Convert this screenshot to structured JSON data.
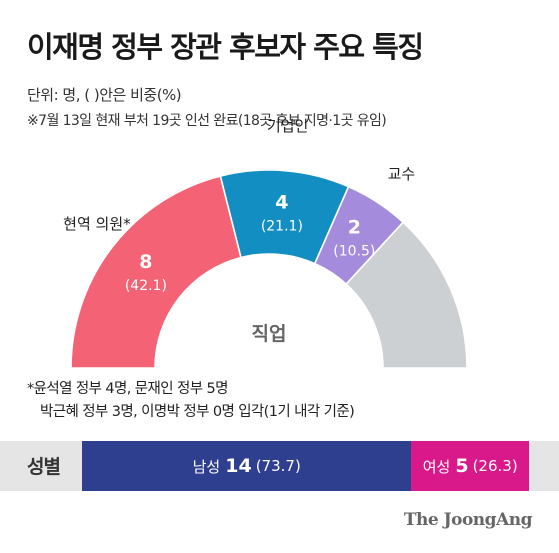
{
  "title": "이재명 정부 장관 후보자 주요 특징",
  "unit": "단위: 명, ( )안은 비중(%)",
  "note": "※7월 13일 현재 부처 19곳 인선 완료(18곳 후보 지명·1곳 유임)",
  "footnote_line1": "*윤석열 정부 4명, 문재인 정부 5명",
  "footnote_line2": "박근혜 정부 3명, 이명박 정부 0명 입각(1기 내각 기준)",
  "logo": "The JoongAng",
  "chart_data": [
    {
      "type": "pie",
      "subtype": "half-donut",
      "title": "직업",
      "total": 19,
      "segments": [
        {
          "name": "현역 의원*",
          "count": 8,
          "percent": "42.1",
          "count_label": "8",
          "percent_label": "(42.1)",
          "color": "#f36375"
        },
        {
          "name": "기업인",
          "count": 4,
          "percent": "21.1",
          "count_label": "4",
          "percent_label": "(21.1)",
          "color": "#138ec2"
        },
        {
          "name": "교수",
          "count": 2,
          "percent": "10.5",
          "count_label": "2",
          "percent_label": "(10.5)",
          "color": "#a48bdc"
        },
        {
          "name": "",
          "count": 5,
          "percent": "26.3",
          "count_label": "",
          "percent_label": "",
          "color": "#cdd0d2"
        }
      ]
    },
    {
      "type": "bar",
      "subtype": "stacked-horizontal",
      "title": "성별",
      "segments": [
        {
          "label": "남성",
          "count": 14,
          "count_label": "14",
          "percent": 73.7,
          "percent_label": "(73.7)",
          "color": "#2f3f90"
        },
        {
          "label": "여성",
          "count": 5,
          "count_label": "5",
          "percent": 26.3,
          "percent_label": "(26.3)",
          "color": "#d9198a"
        }
      ]
    }
  ]
}
